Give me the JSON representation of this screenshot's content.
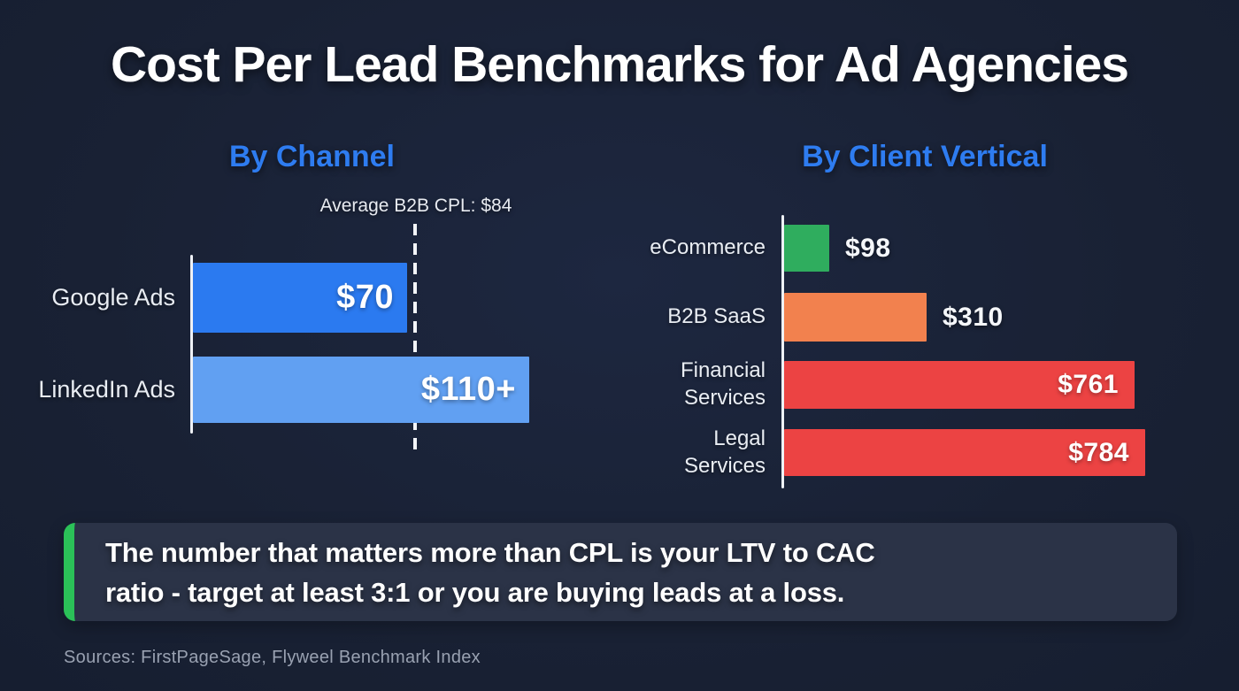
{
  "title": "Cost Per Lead Benchmarks for Ad Agencies",
  "callout": {
    "line1": "The number that matters more than CPL is your LTV to CAC",
    "line2": "ratio - target at least 3:1 or you are buying leads at a loss.",
    "accent_color": "#2bc158"
  },
  "footer": {
    "sources": "Sources: FirstPageSage, Flyweel Benchmark Index"
  },
  "colors": {
    "background": "#1a2337",
    "heading_blue": "#2e7cf0",
    "title_white": "#ffffff",
    "axis_white": "#eef1f6",
    "callout_bg": "#2b3347",
    "footer_gray": "#99a1b1"
  },
  "chart_data": [
    {
      "type": "bar",
      "orientation": "horizontal",
      "title": "By Channel",
      "categories": [
        "Google Ads",
        "LinkedIn Ads"
      ],
      "values": [
        70,
        110
      ],
      "value_labels": [
        "$70",
        "$110+"
      ],
      "bar_colors": [
        "#2b7af0",
        "#61a0f2"
      ],
      "xlim": [
        0,
        132
      ],
      "grid": false,
      "legend": "none",
      "annotation": {
        "label": "Average B2B CPL: $84",
        "value": 84
      }
    },
    {
      "type": "bar",
      "orientation": "horizontal",
      "title": "By Client Vertical",
      "categories": [
        "eCommerce",
        "B2B SaaS",
        "Financial Services",
        "Legal Services"
      ],
      "values": [
        98,
        310,
        761,
        784
      ],
      "value_labels": [
        "$98",
        "$310",
        "$761",
        "$784"
      ],
      "bar_colors": [
        "#2fad5e",
        "#f2814e",
        "#ec4343",
        "#ec4343"
      ],
      "xlim": [
        0,
        800
      ],
      "grid": false,
      "legend": "none"
    }
  ]
}
